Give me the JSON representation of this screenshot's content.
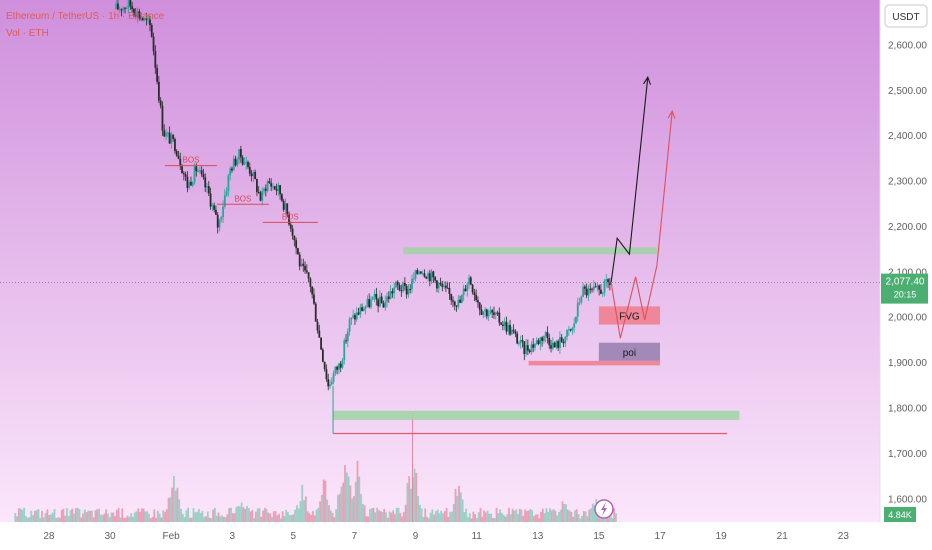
{
  "header": {
    "symbol_line": "Ethereum / TetherUS · 1h · Binance",
    "volume_line": "Vol · ETH"
  },
  "currency_badge": "USDT",
  "last_price": {
    "value": "2,077.40",
    "countdown": "20:15"
  },
  "volume_badge": "4.84K",
  "colors": {
    "background_top": "#cf8fdc",
    "background_bottom": "#fbe6fb",
    "up": "#26a69a",
    "down": "#2b2b2b",
    "green_zone": "#9fd3a3",
    "red_zone": "#f08090",
    "poi_zone": "#9a82b0",
    "bos": "#d94a5a",
    "badge_green": "#4caf72"
  },
  "chart_data": {
    "type": "candlestick",
    "title": "",
    "ylabel": "",
    "ylim": [
      1550,
      2700
    ],
    "y_ticks": [
      "2,600.00",
      "2,500.00",
      "2,400.00",
      "2,300.00",
      "2,200.00",
      "2,100.00",
      "2,000.00",
      "1,900.00",
      "1,800.00",
      "1,700.00",
      "1,600.00"
    ],
    "y_tick_values": [
      2600,
      2500,
      2400,
      2300,
      2200,
      2100,
      2000,
      1900,
      1800,
      1700,
      1600
    ],
    "x_ticks": [
      "28",
      "30",
      "Feb",
      "3",
      "5",
      "7",
      "9",
      "11",
      "13",
      "15",
      "17",
      "19",
      "21",
      "23"
    ],
    "x_tick_days": [
      -4,
      -2,
      0,
      2,
      4,
      6,
      8,
      10,
      12,
      14,
      16,
      18,
      20,
      22
    ],
    "x_range_days": [
      -5.6,
      23.2
    ],
    "price_path": [
      [
        -1.8,
        2680
      ],
      [
        -1.3,
        2690
      ],
      [
        -0.6,
        2640
      ],
      [
        -0.2,
        2410
      ],
      [
        0.2,
        2380
      ],
      [
        0.6,
        2290
      ],
      [
        0.9,
        2330
      ],
      [
        1.3,
        2270
      ],
      [
        1.6,
        2200
      ],
      [
        2.0,
        2330
      ],
      [
        2.3,
        2360
      ],
      [
        2.7,
        2320
      ],
      [
        3.0,
        2260
      ],
      [
        3.2,
        2300
      ],
      [
        3.6,
        2280
      ],
      [
        4.0,
        2200
      ],
      [
        4.3,
        2110
      ],
      [
        4.6,
        2080
      ],
      [
        4.9,
        1960
      ],
      [
        5.2,
        1850
      ],
      [
        5.4,
        1880
      ],
      [
        5.6,
        1900
      ],
      [
        5.9,
        1990
      ],
      [
        6.3,
        2020
      ],
      [
        6.7,
        2040
      ],
      [
        7.0,
        2030
      ],
      [
        7.4,
        2070
      ],
      [
        7.8,
        2060
      ],
      [
        8.2,
        2110
      ],
      [
        8.6,
        2090
      ],
      [
        9.0,
        2060
      ],
      [
        9.5,
        2030
      ],
      [
        9.8,
        2090
      ],
      [
        10.2,
        2020
      ],
      [
        10.5,
        2010
      ],
      [
        10.9,
        1990
      ],
      [
        11.2,
        1970
      ],
      [
        11.6,
        1930
      ],
      [
        12.0,
        1945
      ],
      [
        12.3,
        1965
      ],
      [
        12.6,
        1935
      ],
      [
        12.9,
        1955
      ],
      [
        13.2,
        1975
      ],
      [
        13.5,
        2060
      ],
      [
        13.8,
        2055
      ],
      [
        14.1,
        2060
      ],
      [
        14.4,
        2077.4
      ]
    ],
    "volume": {
      "scale_max": 1,
      "spikes": [
        [
          0.1,
          0.6
        ],
        [
          5.7,
          1.0
        ],
        [
          6.1,
          0.7
        ],
        [
          7.9,
          0.85
        ],
        [
          5.0,
          0.55
        ],
        [
          4.3,
          0.45
        ],
        [
          9.4,
          0.5
        ],
        [
          2.3,
          0.4
        ],
        [
          12.9,
          0.35
        ],
        [
          13.9,
          0.3
        ]
      ]
    },
    "annotations": {
      "bos": [
        {
          "label": "BOS",
          "y": 2335,
          "x_start": -0.2,
          "x_end": 1.5
        },
        {
          "label": "BOS",
          "y": 2250,
          "x_start": 1.5,
          "x_end": 3.2
        },
        {
          "label": "BOS",
          "y": 2210,
          "x_start": 3.0,
          "x_end": 4.8
        }
      ],
      "zones": [
        {
          "kind": "green",
          "label": "",
          "y_top": 2155,
          "y_bottom": 2140,
          "x_start": 7.6,
          "x_end": 15.9
        },
        {
          "kind": "green",
          "label": "",
          "y_top": 1795,
          "y_bottom": 1775,
          "x_start": 5.3,
          "x_end": 18.6
        },
        {
          "kind": "red",
          "label": "FVG",
          "y_top": 2025,
          "y_bottom": 1985,
          "x_start": 14.0,
          "x_end": 16.0
        },
        {
          "kind": "poi",
          "label": "poi",
          "y_top": 1945,
          "y_bottom": 1905,
          "x_start": 14.0,
          "x_end": 16.0
        },
        {
          "kind": "red",
          "label": "",
          "y_top": 1905,
          "y_bottom": 1895,
          "x_start": 11.7,
          "x_end": 16.0
        }
      ],
      "low_line": {
        "y": 1745,
        "x_start": 5.3,
        "x_end": 18.2
      },
      "projections": [
        {
          "color": "black",
          "points": [
            [
              14.4,
              2078
            ],
            [
              14.6,
              2175
            ],
            [
              15.0,
              2140
            ],
            [
              15.6,
              2530
            ]
          ]
        },
        {
          "color": "red",
          "points": [
            [
              14.4,
              2078
            ],
            [
              14.7,
              1955
            ],
            [
              15.2,
              2090
            ],
            [
              15.5,
              1995
            ],
            [
              15.9,
              2115
            ],
            [
              16.4,
              2455
            ]
          ]
        }
      ]
    }
  }
}
